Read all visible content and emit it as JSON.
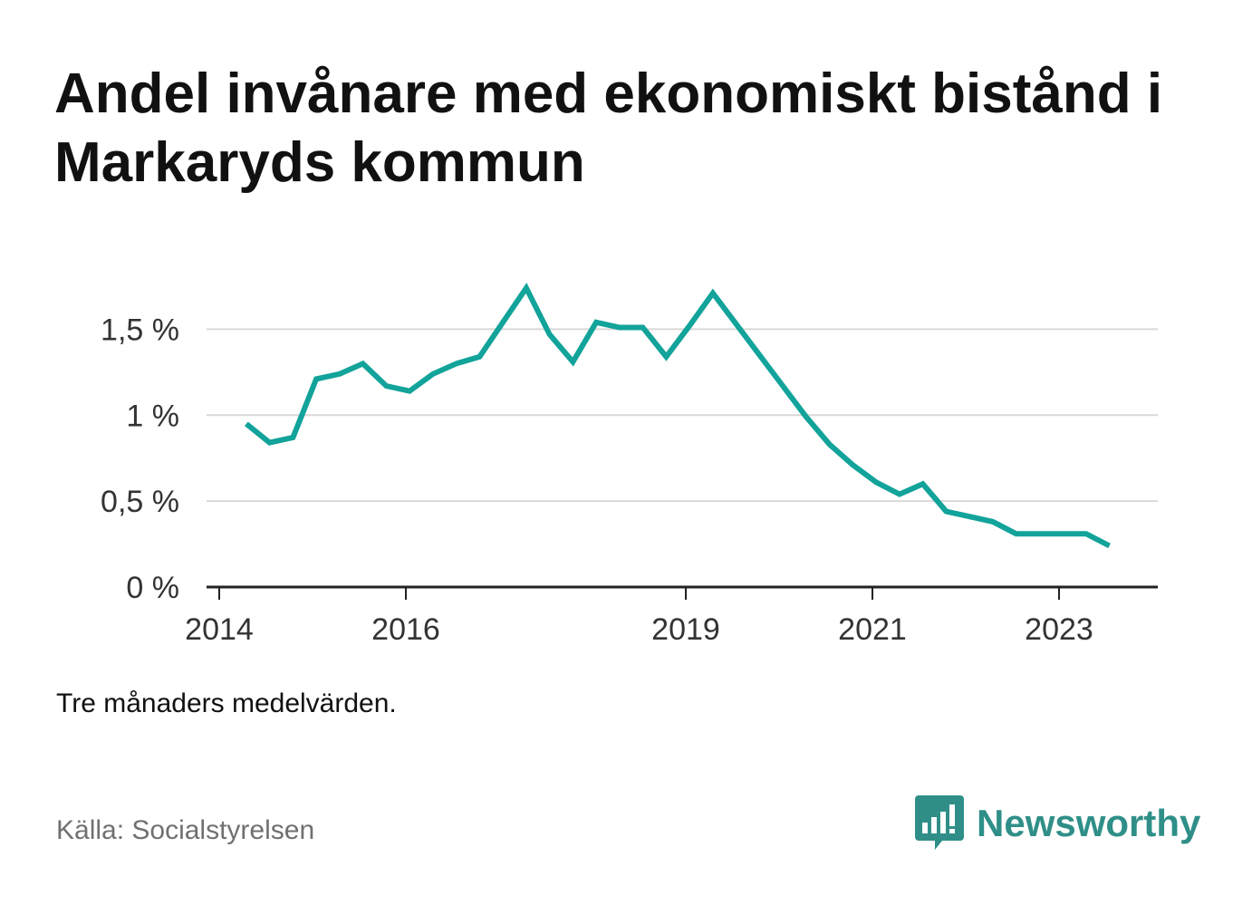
{
  "title": "Andel invånare med ekonomiskt bistånd i Markaryds kommun",
  "note": "Tre månaders medelvärden.",
  "source": "Källa: Socialstyrelsen",
  "brand": {
    "name": "Newsworthy",
    "icon": "newsworthy-logo-icon",
    "color": "#2f8f88"
  },
  "chart_data": {
    "type": "line",
    "title": "Andel invånare med ekonomiskt bistånd i Markaryds kommun",
    "xlabel": "",
    "ylabel": "",
    "line_color": "#12a39a",
    "grid": true,
    "y_ticks": [
      {
        "value": 0,
        "label": "0 %"
      },
      {
        "value": 0.5,
        "label": "0,5 %"
      },
      {
        "value": 1,
        "label": "1 %"
      },
      {
        "value": 1.5,
        "label": "1,5 %"
      }
    ],
    "x_ticks": [
      {
        "value": 2014.0,
        "label": "2014"
      },
      {
        "value": 2016.0,
        "label": "2016"
      },
      {
        "value": 2019.0,
        "label": "2019"
      },
      {
        "value": 2021.0,
        "label": "2021"
      },
      {
        "value": 2023.0,
        "label": "2023"
      }
    ],
    "xlim": [
      2014.0,
      2024.0
    ],
    "ylim": [
      0,
      1.75
    ],
    "series": [
      {
        "x": [
          2014.29,
          2014.54,
          2014.79,
          2015.04,
          2015.29,
          2015.54,
          2015.79,
          2016.04,
          2016.29,
          2016.54,
          2016.79,
          2017.04,
          2017.29,
          2017.54,
          2017.79,
          2018.04,
          2018.29,
          2018.54,
          2018.79,
          2019.04,
          2019.29,
          2019.54,
          2019.79,
          2020.04,
          2020.29,
          2020.54,
          2020.79,
          2021.04,
          2021.29,
          2021.54,
          2021.79,
          2022.04,
          2022.29,
          2022.54,
          2022.79,
          2023.04,
          2023.29,
          2023.54
        ],
        "y": [
          0.95,
          0.84,
          0.87,
          1.21,
          1.24,
          1.3,
          1.17,
          1.14,
          1.24,
          1.3,
          1.34,
          1.54,
          1.74,
          1.47,
          1.31,
          1.54,
          1.51,
          1.51,
          1.34,
          1.52,
          1.71,
          1.53,
          1.35,
          1.17,
          0.99,
          0.83,
          0.71,
          0.61,
          0.54,
          0.6,
          0.44,
          0.41,
          0.38,
          0.31,
          0.31,
          0.31,
          0.31,
          0.24
        ]
      }
    ]
  }
}
